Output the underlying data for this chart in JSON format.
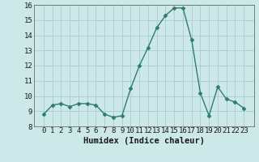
{
  "x": [
    0,
    1,
    2,
    3,
    4,
    5,
    6,
    7,
    8,
    9,
    10,
    11,
    12,
    13,
    14,
    15,
    16,
    17,
    18,
    19,
    20,
    21,
    22,
    23
  ],
  "y": [
    8.8,
    9.4,
    9.5,
    9.3,
    9.5,
    9.5,
    9.4,
    8.8,
    8.6,
    8.7,
    10.5,
    12.0,
    13.2,
    14.5,
    15.3,
    15.8,
    15.8,
    13.7,
    10.2,
    8.7,
    10.6,
    9.8,
    9.6,
    9.2
  ],
  "line_color": "#2e7d6e",
  "marker": "D",
  "marker_size": 2.5,
  "bg_color": "#cce8e8",
  "grid_color": "#aacccc",
  "xlabel": "Humidex (Indice chaleur)",
  "ylim": [
    8,
    16
  ],
  "yticks": [
    8,
    9,
    10,
    11,
    12,
    13,
    14,
    15,
    16
  ],
  "xticks": [
    0,
    1,
    2,
    3,
    4,
    5,
    6,
    7,
    8,
    9,
    10,
    11,
    12,
    13,
    14,
    15,
    16,
    17,
    18,
    19,
    20,
    21,
    22,
    23
  ],
  "xlabel_fontsize": 7.5,
  "tick_fontsize": 6.5,
  "line_width": 1.0
}
